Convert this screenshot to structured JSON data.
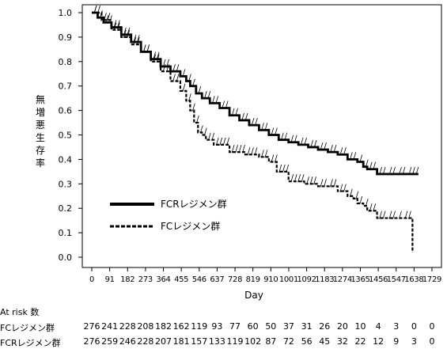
{
  "chart_data": {
    "type": "line",
    "title": "",
    "xlabel": "Day",
    "ylabel": "無増悪生存率",
    "xlim": [
      0,
      1729
    ],
    "ylim": [
      0.0,
      1.0
    ],
    "x_ticks": [
      0,
      91,
      182,
      273,
      364,
      455,
      546,
      637,
      728,
      819,
      910,
      1001,
      1092,
      1183,
      1274,
      1365,
      1456,
      1547,
      1638,
      1729
    ],
    "x_tick_labels": [
      "0",
      "91",
      "182",
      "273",
      "364",
      "455",
      "546",
      "637",
      "728",
      "819",
      "910",
      "1001",
      "1092",
      "1183",
      "1274",
      "1365",
      "1456",
      "1547",
      "1638",
      "1729"
    ],
    "y_ticks": [
      0.0,
      0.1,
      0.2,
      0.3,
      0.4,
      0.5,
      0.6,
      0.7,
      0.8,
      0.9,
      1.0
    ],
    "y_tick_labels": [
      "0.0",
      "0.1",
      "0.2",
      "0.3",
      "0.4",
      "0.5",
      "0.6",
      "0.7",
      "0.8",
      "0.9",
      "1.0"
    ],
    "grid": false,
    "legend_position": "lower-left",
    "series": [
      {
        "name": "FCRレジメン群",
        "line_style": "solid",
        "color": "#000000",
        "x": [
          0,
          30,
          60,
          100,
          150,
          200,
          250,
          300,
          350,
          400,
          450,
          480,
          500,
          530,
          560,
          600,
          650,
          700,
          750,
          800,
          850,
          900,
          950,
          1000,
          1050,
          1100,
          1150,
          1200,
          1250,
          1300,
          1350,
          1380,
          1400,
          1450,
          1500,
          1550,
          1600,
          1660
        ],
        "y": [
          1.0,
          0.98,
          0.96,
          0.94,
          0.91,
          0.88,
          0.84,
          0.81,
          0.78,
          0.76,
          0.74,
          0.72,
          0.7,
          0.67,
          0.65,
          0.63,
          0.61,
          0.58,
          0.56,
          0.54,
          0.52,
          0.5,
          0.48,
          0.47,
          0.46,
          0.45,
          0.44,
          0.43,
          0.42,
          0.4,
          0.39,
          0.37,
          0.36,
          0.34,
          0.34,
          0.34,
          0.34,
          0.34
        ]
      },
      {
        "name": "FCレジメン群",
        "line_style": "dashed",
        "color": "#000000",
        "x": [
          0,
          50,
          100,
          150,
          200,
          250,
          300,
          350,
          400,
          450,
          480,
          500,
          520,
          540,
          560,
          580,
          620,
          700,
          780,
          850,
          900,
          940,
          1000,
          1080,
          1150,
          1200,
          1250,
          1300,
          1330,
          1350,
          1380,
          1400,
          1450,
          1500,
          1550,
          1580,
          1630
        ],
        "y": [
          1.0,
          0.97,
          0.93,
          0.9,
          0.87,
          0.84,
          0.8,
          0.76,
          0.72,
          0.68,
          0.64,
          0.6,
          0.55,
          0.51,
          0.5,
          0.48,
          0.46,
          0.43,
          0.42,
          0.41,
          0.39,
          0.35,
          0.31,
          0.3,
          0.29,
          0.29,
          0.27,
          0.25,
          0.24,
          0.22,
          0.21,
          0.19,
          0.16,
          0.16,
          0.16,
          0.16,
          0.02
        ]
      }
    ]
  },
  "risk_table": {
    "title": "At risk 数",
    "rows": [
      {
        "label": "FCレジメン群",
        "values": [
          "276",
          "241",
          "228",
          "208",
          "182",
          "162",
          "119",
          "93",
          "77",
          "60",
          "50",
          "37",
          "31",
          "26",
          "20",
          "10",
          "4",
          "3",
          "0",
          "0"
        ]
      },
      {
        "label": "FCRレジメン群",
        "values": [
          "276",
          "259",
          "246",
          "228",
          "207",
          "181",
          "157",
          "133",
          "119",
          "102",
          "87",
          "72",
          "56",
          "45",
          "32",
          "22",
          "12",
          "9",
          "3",
          "0"
        ]
      }
    ]
  }
}
